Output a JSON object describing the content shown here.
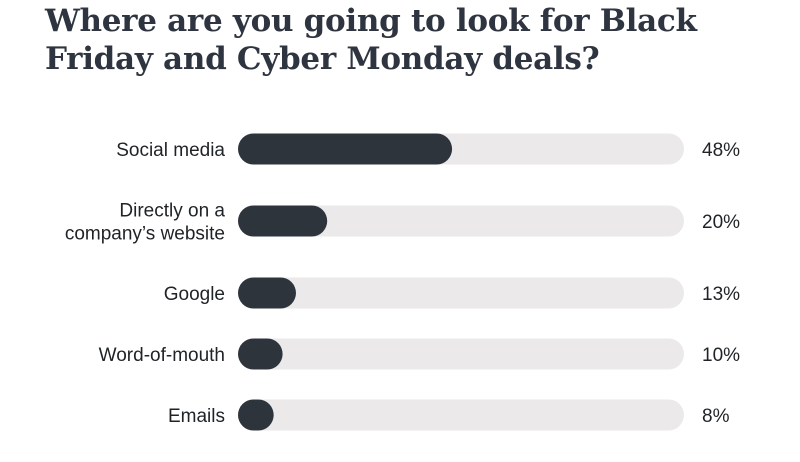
{
  "title": "Where are you going to look for Black Friday and Cyber Monday deals?",
  "colors": {
    "bar_fill": "#2d343c",
    "track": "#ebe9e9",
    "text": "#1f2326",
    "title": "#2e3540"
  },
  "chart_data": {
    "type": "bar",
    "orientation": "horizontal",
    "title": "Where are you going to look for Black Friday and Cyber Monday deals?",
    "xlabel": "",
    "ylabel": "",
    "xlim": [
      0,
      100
    ],
    "grid": false,
    "legend": "none",
    "categories": [
      [
        "Social media"
      ],
      [
        "Directly on a",
        "company’s website"
      ],
      [
        "Google"
      ],
      [
        "Word-of-mouth"
      ],
      [
        "Emails"
      ]
    ],
    "values": [
      48,
      20,
      13,
      10,
      8
    ],
    "value_labels": [
      "48%",
      "20%",
      "13%",
      "10%",
      "8%"
    ]
  }
}
